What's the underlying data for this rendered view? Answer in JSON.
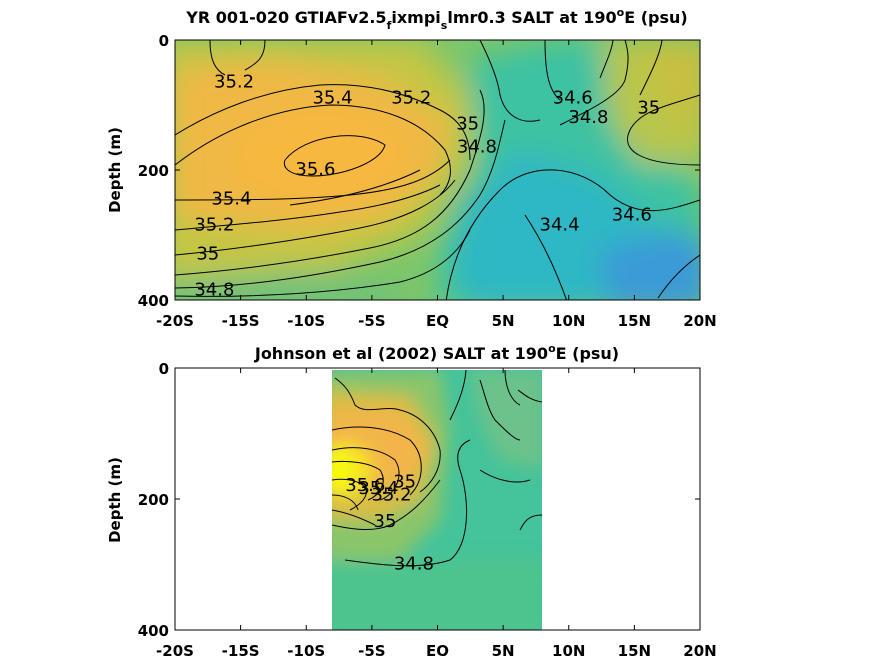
{
  "chart_data": [
    {
      "type": "heatmap",
      "variant": "filled-contour",
      "title": "YR 001-020 GTIAFv2.5",
      "title_sub1": "f",
      "title_mid": "ixmpi",
      "title_sub2": "s",
      "title_end": "lmr0.3 SALT at 190",
      "title_sup": "o",
      "title_tail": "E (psu)",
      "ylabel": "Depth (m)",
      "xlabel": "",
      "xlim": [
        -20,
        20
      ],
      "ylim": [
        0,
        400
      ],
      "y_reversed": true,
      "xtick_values": [
        -20,
        -15,
        -10,
        -5,
        0,
        5,
        10,
        15,
        20
      ],
      "xtick_labels": [
        "-20S",
        "-15S",
        "-10S",
        "-5S",
        "EQ",
        "5N",
        "10N",
        "15N",
        "20N"
      ],
      "ytick_values": [
        0,
        200,
        400
      ],
      "ytick_labels": [
        "0",
        "200",
        "400"
      ],
      "data_coverage": [
        -20,
        20
      ],
      "contour_labels": [
        {
          "text": "35.2",
          "x": -15.5,
          "y": 65
        },
        {
          "text": "35.4",
          "x": -8,
          "y": 90
        },
        {
          "text": "35.2",
          "x": -2,
          "y": 90
        },
        {
          "text": "35",
          "x": 2.3,
          "y": 130
        },
        {
          "text": "34.8",
          "x": 3,
          "y": 165
        },
        {
          "text": "35.6",
          "x": -9.3,
          "y": 200
        },
        {
          "text": "35.4",
          "x": -15.7,
          "y": 245
        },
        {
          "text": "35.2",
          "x": -17,
          "y": 285
        },
        {
          "text": "35",
          "x": -17.5,
          "y": 330
        },
        {
          "text": "34.8",
          "x": -17,
          "y": 385
        },
        {
          "text": "34.6",
          "x": 10.3,
          "y": 90
        },
        {
          "text": "34.8",
          "x": 11.5,
          "y": 120
        },
        {
          "text": "35",
          "x": 16.1,
          "y": 105
        },
        {
          "text": "34.6",
          "x": 14.8,
          "y": 270
        },
        {
          "text": "34.4",
          "x": 9.3,
          "y": 285
        }
      ]
    },
    {
      "type": "heatmap",
      "variant": "filled-contour",
      "title": "Johnson et al (2002) SALT at 190",
      "title_sup": "o",
      "title_tail": "E (psu)",
      "ylabel": "Depth (m)",
      "xlabel": "",
      "xlim": [
        -20,
        20
      ],
      "ylim": [
        0,
        400
      ],
      "y_reversed": true,
      "xtick_values": [
        -20,
        -15,
        -10,
        -5,
        0,
        5,
        10,
        15,
        20
      ],
      "xtick_labels": [
        "-20S",
        "-15S",
        "-10S",
        "-5S",
        "EQ",
        "5N",
        "10N",
        "15N",
        "20N"
      ],
      "ytick_values": [
        0,
        200,
        400
      ],
      "ytick_labels": [
        "0",
        "200",
        "400"
      ],
      "data_coverage": [
        -8,
        8
      ],
      "contour_labels": [
        {
          "text": "35.6",
          "x": -5.5,
          "y": 180
        },
        {
          "text": "35.4",
          "x": -4.5,
          "y": 185
        },
        {
          "text": "35.2",
          "x": -3.5,
          "y": 195
        },
        {
          "text": "35",
          "x": -2.5,
          "y": 175
        },
        {
          "text": "35",
          "x": -4,
          "y": 235
        },
        {
          "text": "34.8",
          "x": -1.8,
          "y": 300
        }
      ]
    }
  ],
  "colors": {
    "map_low": "#2a8cde",
    "map_mid": "#35c0aa",
    "map_high": "#f5b840",
    "map_peak": "#f8f712"
  }
}
